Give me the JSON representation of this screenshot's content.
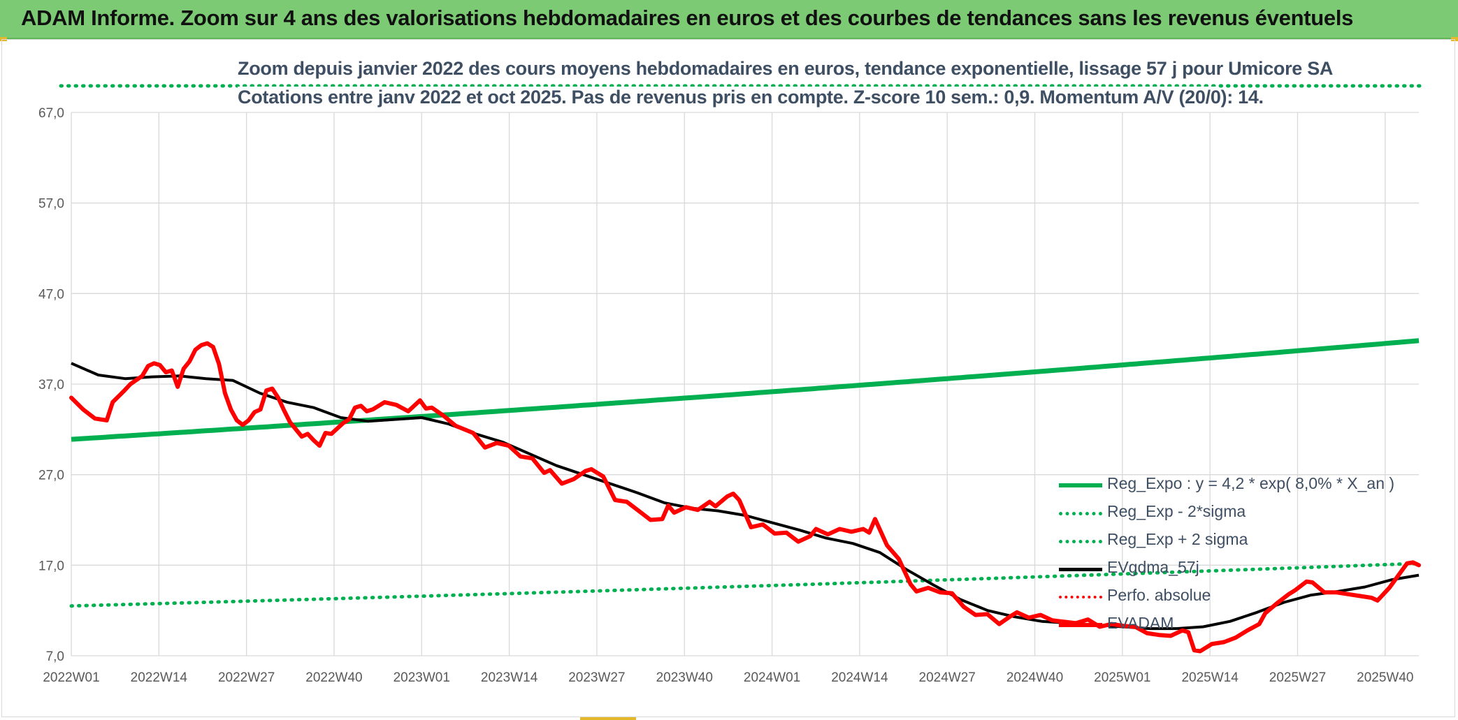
{
  "header": {
    "title": "ADAM Informe. Zoom sur 4 ans des valorisations hebdomadaires en euros et des courbes de tendances sans les revenus éventuels"
  },
  "chart_data": {
    "type": "line",
    "title": "Zoom depuis janvier 2022 des cours moyens hebdomadaires en euros, tendance exponentielle, lissage 57 j pour Umicore SA",
    "subtitle": "Cotations entre janv 2022 et oct 2025. Pas de revenus pris en compte. Z-score 10 sem.: 0,9. Momentum A/V (20/0): 14.",
    "ylim": [
      7,
      67
    ],
    "yticks": [
      "67,0",
      "57,0",
      "47,0",
      "37,0",
      "27,0",
      "17,0",
      "7,0"
    ],
    "xticks": [
      "2022W01",
      "2022W14",
      "2022W27",
      "2022W40",
      "2023W01",
      "2023W14",
      "2023W27",
      "2023W40",
      "2024W01",
      "2024W14",
      "2024W27",
      "2024W40",
      "2025W01",
      "2025W14",
      "2025W27",
      "2025W40"
    ],
    "grid": true,
    "legend_position": "bottom-right",
    "x_count": 201,
    "series": [
      {
        "name": "Reg_Expo : y = 4,2 * exp( 8,0% *  X_an )",
        "color": "#00b050",
        "style": "solid",
        "start": 30.9,
        "end": 41.8
      },
      {
        "name": "Reg_Exp - 2*sigma",
        "color": "#00b050",
        "style": "dotted",
        "start": 12.5,
        "end": 17.2
      },
      {
        "name": "Reg_Exp + 2 sigma",
        "color": "#00b050",
        "style": "dotted",
        "start": 69.8,
        "end": 69.8,
        "clipped_above_ylim": true
      },
      {
        "name": "EVgdma_57j",
        "color": "#000000",
        "style": "solid",
        "keypoints": [
          [
            0,
            39.3
          ],
          [
            4,
            38.0
          ],
          [
            8,
            37.6
          ],
          [
            12,
            37.8
          ],
          [
            16,
            37.9
          ],
          [
            20,
            37.6
          ],
          [
            24,
            37.4
          ],
          [
            28,
            36.0
          ],
          [
            32,
            35.0
          ],
          [
            36,
            34.4
          ],
          [
            40,
            33.3
          ],
          [
            44,
            32.9
          ],
          [
            48,
            33.1
          ],
          [
            52,
            33.3
          ],
          [
            56,
            32.6
          ],
          [
            60,
            31.5
          ],
          [
            64,
            30.6
          ],
          [
            68,
            29.3
          ],
          [
            72,
            28.0
          ],
          [
            76,
            27.0
          ],
          [
            80,
            26.0
          ],
          [
            84,
            25.0
          ],
          [
            88,
            23.9
          ],
          [
            92,
            23.3
          ],
          [
            96,
            23.0
          ],
          [
            100,
            22.5
          ],
          [
            104,
            21.7
          ],
          [
            108,
            20.9
          ],
          [
            112,
            20.0
          ],
          [
            116,
            19.4
          ],
          [
            120,
            18.4
          ],
          [
            124,
            16.5
          ],
          [
            128,
            14.8
          ],
          [
            132,
            13.2
          ],
          [
            136,
            12.0
          ],
          [
            140,
            11.3
          ],
          [
            144,
            10.8
          ],
          [
            148,
            10.6
          ],
          [
            152,
            10.4
          ],
          [
            156,
            10.2
          ],
          [
            160,
            10.0
          ],
          [
            164,
            10.0
          ],
          [
            168,
            10.2
          ],
          [
            172,
            10.8
          ],
          [
            176,
            11.8
          ],
          [
            180,
            12.9
          ],
          [
            184,
            13.7
          ],
          [
            188,
            14.1
          ],
          [
            192,
            14.6
          ],
          [
            196,
            15.4
          ],
          [
            200,
            15.9
          ]
        ]
      },
      {
        "name": "Perfo. absolue",
        "color": "#ff0000",
        "style": "dotted",
        "keypoints": []
      },
      {
        "name": "EVADAM",
        "color": "#ff0000",
        "style": "solid",
        "keypoints": [
          [
            0,
            35.5
          ],
          [
            2,
            34.2
          ],
          [
            4,
            33.2
          ],
          [
            6,
            33.0
          ],
          [
            7,
            35.0
          ],
          [
            9,
            36.3
          ],
          [
            10,
            37.0
          ],
          [
            12,
            37.9
          ],
          [
            13,
            39.0
          ],
          [
            14,
            39.3
          ],
          [
            15,
            39.1
          ],
          [
            16,
            38.3
          ],
          [
            17,
            38.5
          ],
          [
            18,
            36.7
          ],
          [
            19,
            38.7
          ],
          [
            20,
            39.5
          ],
          [
            21,
            40.8
          ],
          [
            22,
            41.3
          ],
          [
            23,
            41.5
          ],
          [
            24,
            41.1
          ],
          [
            25,
            39.2
          ],
          [
            26,
            36.0
          ],
          [
            27,
            34.2
          ],
          [
            28,
            33.0
          ],
          [
            29,
            32.5
          ],
          [
            30,
            33.0
          ],
          [
            31,
            33.9
          ],
          [
            32,
            34.2
          ],
          [
            33,
            36.3
          ],
          [
            34,
            36.5
          ],
          [
            35,
            35.5
          ],
          [
            36,
            34.1
          ],
          [
            37,
            32.8
          ],
          [
            38,
            32.0
          ],
          [
            39,
            31.2
          ],
          [
            40,
            31.5
          ],
          [
            41,
            30.8
          ],
          [
            42,
            30.2
          ],
          [
            43,
            31.6
          ],
          [
            44,
            31.5
          ],
          [
            46,
            32.7
          ],
          [
            47,
            33.1
          ],
          [
            48,
            34.4
          ],
          [
            49,
            34.6
          ],
          [
            50,
            34.0
          ],
          [
            51,
            34.2
          ],
          [
            53,
            35.0
          ],
          [
            55,
            34.7
          ],
          [
            57,
            34.0
          ],
          [
            59,
            35.2
          ],
          [
            60,
            34.3
          ],
          [
            61,
            34.4
          ],
          [
            63,
            33.5
          ],
          [
            65,
            32.4
          ],
          [
            68,
            31.6
          ],
          [
            70,
            30.0
          ],
          [
            72,
            30.5
          ],
          [
            74,
            30.2
          ],
          [
            76,
            29.0
          ],
          [
            78,
            28.8
          ],
          [
            80,
            27.2
          ],
          [
            81,
            27.5
          ],
          [
            83,
            26.0
          ],
          [
            85,
            26.5
          ],
          [
            87,
            27.4
          ],
          [
            88,
            27.6
          ],
          [
            90,
            26.8
          ],
          [
            92,
            24.2
          ],
          [
            94,
            24.0
          ],
          [
            96,
            23.0
          ],
          [
            98,
            22.0
          ],
          [
            100,
            22.1
          ],
          [
            101,
            23.6
          ],
          [
            102,
            22.8
          ],
          [
            104,
            23.4
          ],
          [
            106,
            23.1
          ],
          [
            108,
            24.0
          ],
          [
            109,
            23.5
          ],
          [
            111,
            24.6
          ],
          [
            112,
            24.9
          ],
          [
            113,
            24.2
          ],
          [
            115,
            21.2
          ],
          [
            117,
            21.5
          ],
          [
            119,
            20.5
          ],
          [
            121,
            20.6
          ],
          [
            123,
            19.6
          ],
          [
            125,
            20.2
          ],
          [
            126,
            21.0
          ],
          [
            128,
            20.4
          ],
          [
            130,
            21.0
          ],
          [
            132,
            20.7
          ],
          [
            134,
            21.0
          ],
          [
            135,
            20.6
          ],
          [
            136,
            22.1
          ],
          [
            138,
            19.2
          ],
          [
            140,
            17.7
          ],
          [
            142,
            14.9
          ],
          [
            143,
            14.1
          ],
          [
            145,
            14.5
          ],
          [
            147,
            14.0
          ],
          [
            149,
            13.9
          ],
          [
            151,
            12.4
          ],
          [
            153,
            11.5
          ],
          [
            155,
            11.6
          ],
          [
            157,
            10.5
          ],
          [
            159,
            11.4
          ],
          [
            160,
            11.8
          ],
          [
            162,
            11.2
          ],
          [
            164,
            11.5
          ],
          [
            166,
            10.9
          ],
          [
            170,
            10.6
          ],
          [
            172,
            11.0
          ],
          [
            174,
            10.2
          ],
          [
            176,
            10.5
          ],
          [
            178,
            10.3
          ],
          [
            180,
            10.2
          ],
          [
            182,
            9.5
          ],
          [
            184,
            9.3
          ],
          [
            186,
            9.2
          ],
          [
            188,
            9.8
          ],
          [
            189,
            9.6
          ],
          [
            190,
            7.6
          ],
          [
            191,
            7.5
          ],
          [
            193,
            8.3
          ],
          [
            195,
            8.5
          ],
          [
            197,
            9.0
          ],
          [
            199,
            9.8
          ],
          [
            201,
            10.5
          ],
          [
            202,
            11.7
          ],
          [
            204,
            12.8
          ],
          [
            206,
            13.8
          ],
          [
            207,
            14.2
          ],
          [
            209,
            15.2
          ],
          [
            210,
            15.1
          ],
          [
            212,
            14.0
          ],
          [
            214,
            14.0
          ],
          [
            216,
            13.8
          ],
          [
            218,
            13.6
          ],
          [
            220,
            13.4
          ],
          [
            221,
            13.1
          ],
          [
            223,
            14.5
          ],
          [
            224,
            15.4
          ],
          [
            226,
            17.2
          ],
          [
            227,
            17.3
          ],
          [
            228,
            17.0
          ]
        ],
        "keypoint_x_scale": 0.8772
      }
    ]
  }
}
